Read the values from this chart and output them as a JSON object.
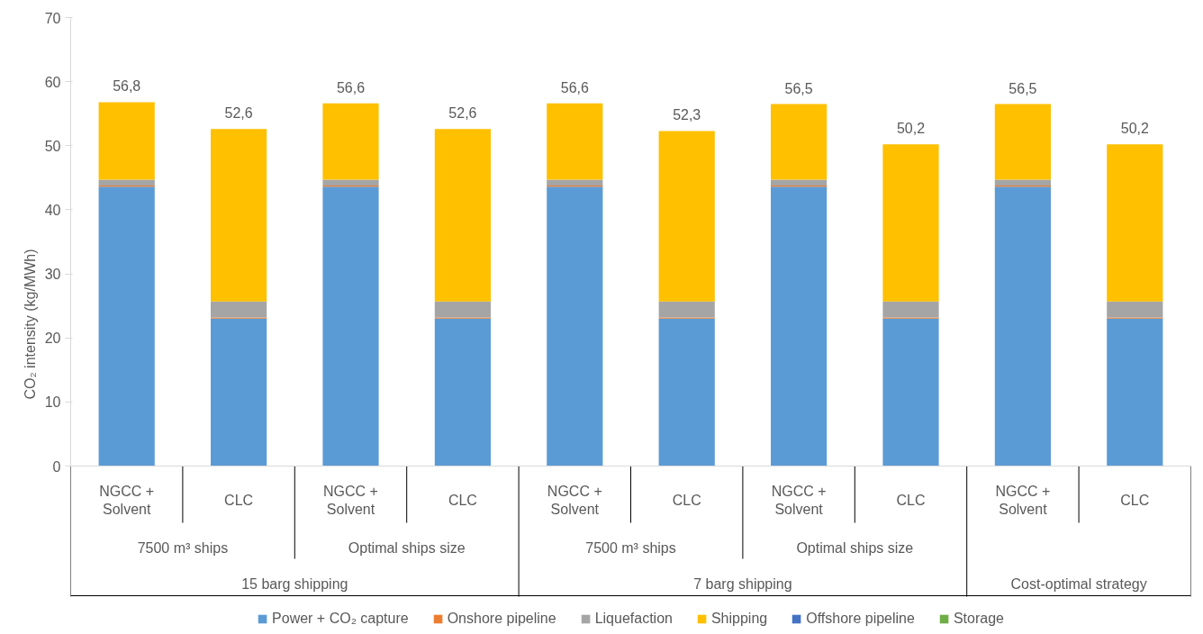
{
  "chart_data": {
    "type": "bar",
    "stacked": true,
    "ylabel": "CO₂ intensity (kg/MWh)",
    "categories": [
      "NGCC + Solvent",
      "CLC",
      "NGCC + Solvent",
      "CLC",
      "NGCC + Solvent",
      "CLC",
      "NGCC + Solvent",
      "CLC",
      "NGCC + Solvent",
      "CLC"
    ],
    "annotations": [
      "7500 m³ ships",
      "Optimal ships size",
      "7500 m³ ships",
      "Optimal ships size",
      "15 barg shipping",
      "7 barg shipping",
      "Cost-optimal strategy"
    ],
    "series": [
      {
        "name": "Power + CO₂ capture",
        "color": "#5b9bd5",
        "values": [
          43.6,
          23.0,
          43.6,
          23.0,
          43.6,
          23.0,
          43.6,
          23.0,
          43.6,
          23.0
        ]
      },
      {
        "name": "Onshore pipeline",
        "color": "#ed7d31",
        "values": [
          0.2,
          0.2,
          0.2,
          0.2,
          0.2,
          0.2,
          0.2,
          0.2,
          0.2,
          0.2
        ]
      },
      {
        "name": "Liquefaction",
        "color": "#a5a5a5",
        "values": [
          0.9,
          2.5,
          0.9,
          2.5,
          0.9,
          2.5,
          0.9,
          2.5,
          0.9,
          2.5
        ]
      },
      {
        "name": "Shipping",
        "color": "#ffc000",
        "values": [
          12.1,
          26.9,
          11.9,
          26.9,
          11.9,
          26.6,
          11.8,
          24.5,
          11.8,
          24.5
        ]
      },
      {
        "name": "Offshore pipeline",
        "color": "#4472c4",
        "values": [
          0,
          0,
          0,
          0,
          0,
          0,
          0,
          0,
          0,
          0
        ]
      },
      {
        "name": "Storage",
        "color": "#70ad47",
        "values": [
          0,
          0,
          0,
          0,
          0,
          0,
          0,
          0,
          0,
          0
        ]
      }
    ],
    "totals": [
      "56,8",
      "52,6",
      "56,6",
      "52,6",
      "56,6",
      "52,3",
      "56,5",
      "50,2",
      "56,5",
      "50,2"
    ],
    "ylim": [
      0,
      70
    ],
    "yticks": [
      0,
      10,
      20,
      30,
      40,
      50,
      60,
      70
    ],
    "grid": false,
    "legend": "bottom"
  }
}
